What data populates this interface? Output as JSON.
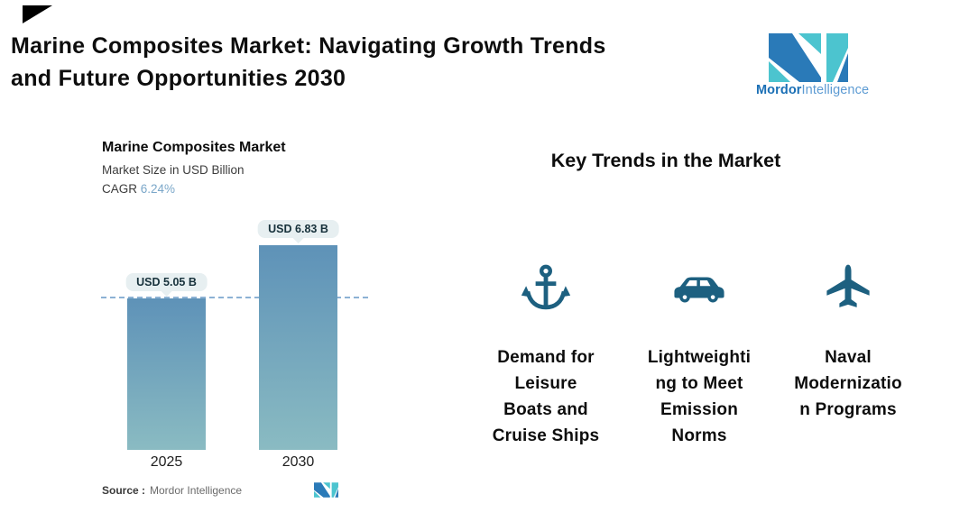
{
  "colors": {
    "title_text": "#0d0d0d",
    "corner_triangle": "#000000",
    "logo_blue": "#2a7ab8",
    "logo_teal": "#4cc4cf",
    "brand_text_bold": "#1a6fb5",
    "brand_text_light": "#5d9bd3",
    "bar_top": "#5e92b8",
    "bar_bottom": "#8abbc2",
    "dashed_line": "#8cb2d4",
    "cagr_value": "#7ba7c9",
    "pill_bg": "#e7eff1",
    "pill_text": "#17313b",
    "subtitle_text": "#3c3c3c",
    "axis_label": "#1f1f1f",
    "source_label": "#3a3a3a",
    "source_value": "#6b6b6b",
    "trend_icon": "#1d6080",
    "trend_text": "#0d0d0d"
  },
  "header": {
    "title": "Marine Composites Market: Navigating Growth Trends and Future Opportunities 2030",
    "title_display": "Marine Composites Market: Navigating Growth Trends\nand Future Opportunities 2030"
  },
  "brand": {
    "name_bold": "Mordor",
    "name_light": "Intelligence"
  },
  "chart": {
    "title": "Marine Composites Market",
    "subtitle": "Market Size in USD Billion",
    "cagr_label": "CAGR",
    "cagr_value": "6.24%",
    "source_label": "Source :",
    "source_value": "Mordor Intelligence"
  },
  "chart_data": {
    "type": "bar",
    "title": "Marine Composites Market",
    "ylabel": "Market Size in USD Billion",
    "unit": "USD Billion",
    "cagr_percent": 6.24,
    "categories": [
      "2025",
      "2030"
    ],
    "values": [
      5.05,
      6.83
    ],
    "value_labels": [
      "USD 5.05 B",
      "USD 6.83 B"
    ],
    "ylim": [
      0,
      7.5
    ],
    "reference_line_value": 5.05,
    "grid": false,
    "legend": "none"
  },
  "trends": {
    "heading": "Key Trends in the Market",
    "items": [
      {
        "icon": "anchor-icon",
        "label": "Demand for Leisure Boats and Cruise Ships",
        "display_lines": "Demand for\nLeisure\nBoats and\nCruise Ships"
      },
      {
        "icon": "car-icon",
        "label": "Lightweighting to Meet Emission Norms",
        "display_lines": "Lightweighti\nng to Meet\nEmission\nNorms"
      },
      {
        "icon": "plane-icon",
        "label": "Naval Modernization Programs",
        "display_lines": "Naval\nModernizatio\nn Programs"
      }
    ]
  }
}
